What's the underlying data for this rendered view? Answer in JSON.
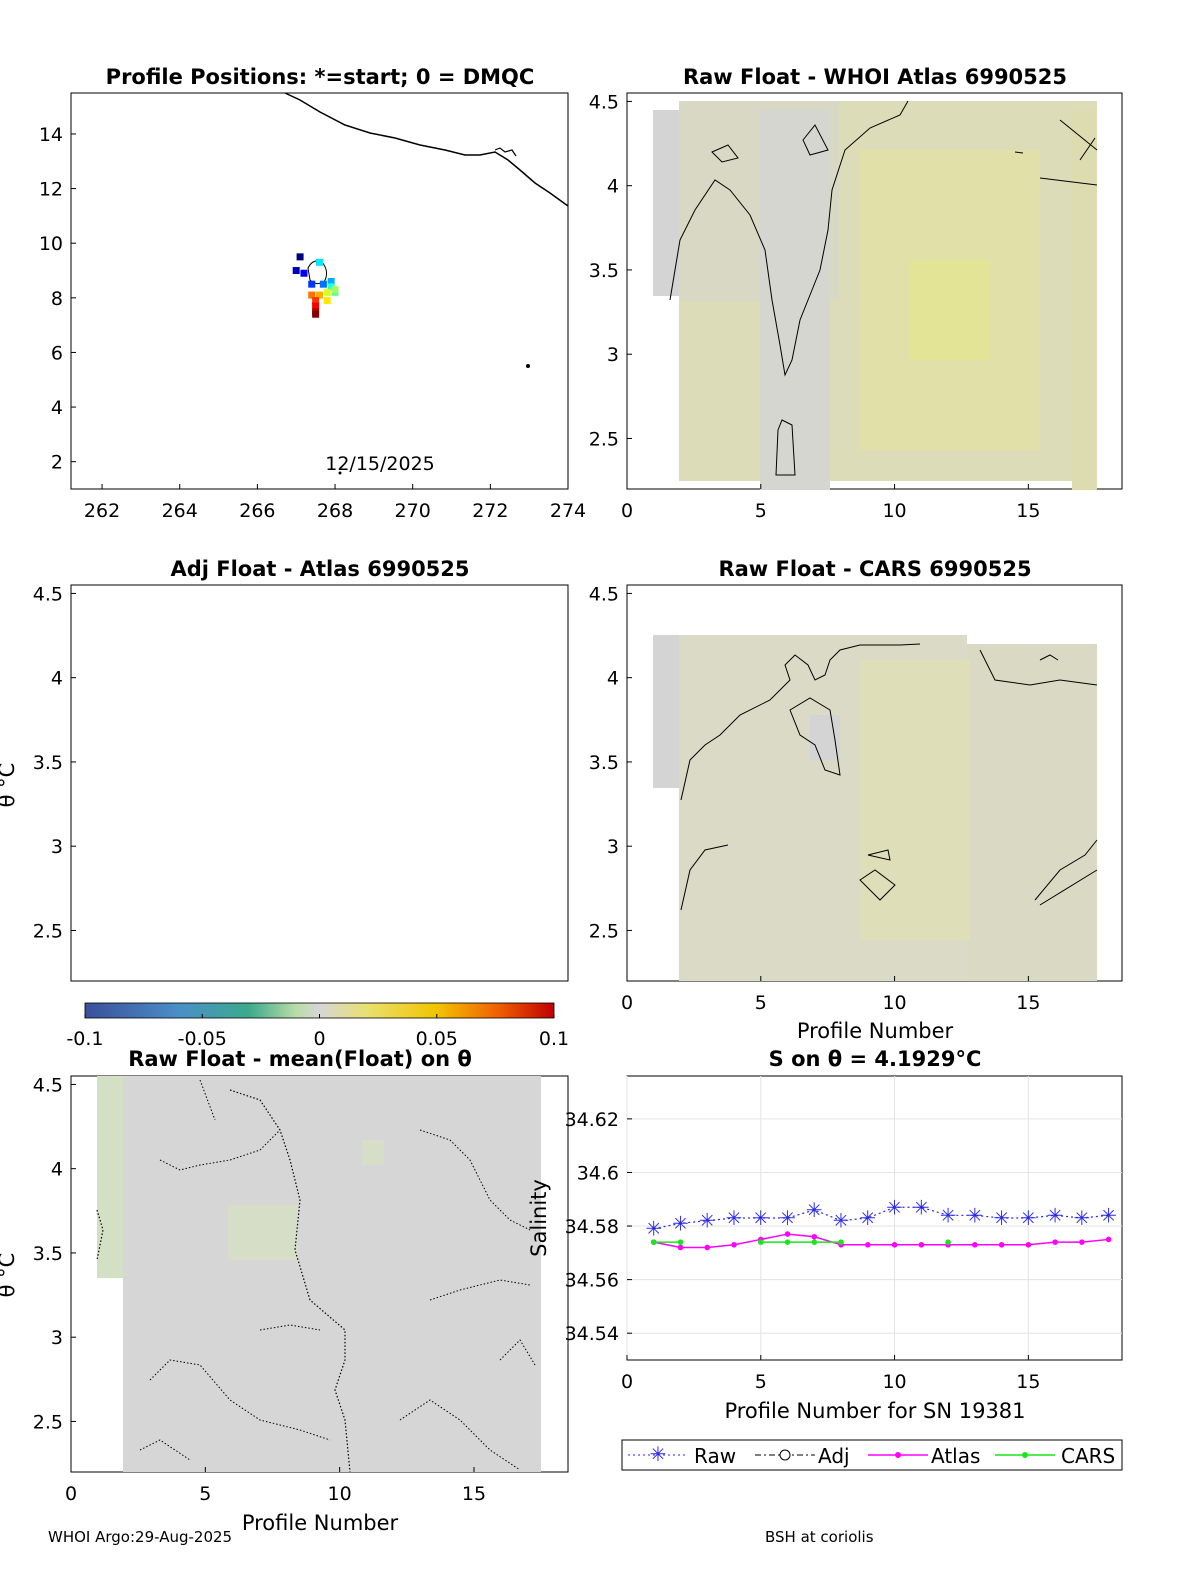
{
  "footer": {
    "left": "WHOI Argo:29-Aug-2025",
    "right": "BSH at coriolis"
  },
  "colors": {
    "raw": "#2a2ae6",
    "atlas": "#ff00ff",
    "cars": "#19e619",
    "anomaly_neutral": "#d6d6d6",
    "anomaly_warm": "#e0e08c",
    "contour": "#000000"
  },
  "chart_data": [
    {
      "id": "positions",
      "type": "scatter",
      "title": "Profile Positions: *=start; 0 = DMQC",
      "xlim": [
        261.2,
        274
      ],
      "ylim": [
        1,
        15.5
      ],
      "xticks": [
        "262",
        "264",
        "266",
        "268",
        "270",
        "272",
        "274"
      ],
      "yticks": [
        "2",
        "4",
        "6",
        "8",
        "10",
        "12",
        "14"
      ],
      "annotation": "12/15/2025",
      "points": [
        {
          "lon": 267.1,
          "lat": 9.5
        },
        {
          "lon": 267.0,
          "lat": 9.0
        },
        {
          "lon": 267.2,
          "lat": 8.9
        },
        {
          "lon": 267.4,
          "lat": 8.5
        },
        {
          "lon": 267.7,
          "lat": 8.5
        },
        {
          "lon": 267.9,
          "lat": 8.6
        },
        {
          "lon": 267.6,
          "lat": 9.3
        },
        {
          "lon": 267.9,
          "lat": 8.4
        },
        {
          "lon": 268.0,
          "lat": 8.2
        },
        {
          "lon": 268.0,
          "lat": 8.3
        },
        {
          "lon": 267.8,
          "lat": 8.2
        },
        {
          "lon": 267.8,
          "lat": 7.9
        },
        {
          "lon": 267.6,
          "lat": 8.1
        },
        {
          "lon": 267.4,
          "lat": 8.1
        },
        {
          "lon": 267.5,
          "lat": 7.9
        },
        {
          "lon": 267.5,
          "lat": 7.7
        },
        {
          "lon": 267.5,
          "lat": 7.5
        },
        {
          "lon": 267.5,
          "lat": 7.4
        }
      ]
    },
    {
      "id": "raw-atlas",
      "type": "heatmap",
      "title": "Raw Float - WHOI Atlas  6990525",
      "xlim": [
        0,
        18.5
      ],
      "ylim": [
        2.2,
        4.55
      ],
      "xticks": [
        "0",
        "5",
        "10",
        "15"
      ],
      "yticks": [
        "2.5",
        "3",
        "3.5",
        "4",
        "4.5"
      ],
      "xlabel": "",
      "ylabel": ""
    },
    {
      "id": "adj-atlas",
      "type": "heatmap",
      "title": "Adj Float - Atlas  6990525",
      "xlim": [
        0,
        18.5
      ],
      "ylim": [
        2.2,
        4.55
      ],
      "xticks": [],
      "yticks": [
        "2.5",
        "3",
        "3.5",
        "4",
        "4.5"
      ],
      "xlabel": "",
      "ylabel": "θ °C"
    },
    {
      "id": "raw-cars",
      "type": "heatmap",
      "title": "Raw Float - CARS  6990525",
      "xlim": [
        0,
        18.5
      ],
      "ylim": [
        2.2,
        4.55
      ],
      "xticks": [
        "0",
        "5",
        "10",
        "15"
      ],
      "yticks": [
        "2.5",
        "3",
        "3.5",
        "4",
        "4.5"
      ],
      "xlabel": "Profile Number",
      "ylabel": ""
    },
    {
      "id": "colorbar",
      "type": "colorbar",
      "range": [
        -0.1,
        0.1
      ],
      "ticks": [
        "-0.1",
        "-0.05",
        "0",
        "0.05",
        "0.1"
      ]
    },
    {
      "id": "raw-mean",
      "type": "heatmap",
      "title": "Raw Float - mean(Float) on θ",
      "xlim": [
        0,
        18.5
      ],
      "ylim": [
        2.2,
        4.55
      ],
      "xticks": [
        "0",
        "5",
        "10",
        "15"
      ],
      "yticks": [
        "2.5",
        "3",
        "3.5",
        "4",
        "4.5"
      ],
      "xlabel": "Profile Number",
      "ylabel": "θ °C"
    },
    {
      "id": "salinity",
      "type": "line",
      "title": "S on θ = 4.1929°C",
      "xlabel": "Profile Number for SN 19381",
      "ylabel": "Salinity",
      "xlim": [
        0,
        18.5
      ],
      "ylim": [
        34.53,
        34.636
      ],
      "xticks": [
        "0",
        "5",
        "10",
        "15"
      ],
      "yticks": [
        "34.54",
        "34.56",
        "34.58",
        "34.6",
        "34.62"
      ],
      "legend": [
        "Raw",
        "Adj",
        "Atlas",
        "CARS"
      ],
      "series": [
        {
          "name": "Raw",
          "x": [
            1,
            2,
            3,
            4,
            5,
            6,
            7,
            8,
            9,
            10,
            11,
            12,
            13,
            14,
            15,
            16,
            17,
            18
          ],
          "values": [
            34.579,
            34.581,
            34.582,
            34.583,
            34.583,
            34.583,
            34.586,
            34.582,
            34.583,
            34.587,
            34.587,
            34.584,
            34.584,
            34.583,
            34.583,
            34.584,
            34.583,
            34.584
          ]
        },
        {
          "name": "Atlas",
          "x": [
            1,
            2,
            3,
            4,
            5,
            6,
            7,
            8,
            9,
            10,
            11,
            12,
            13,
            14,
            15,
            16,
            17,
            18
          ],
          "values": [
            34.574,
            34.572,
            34.572,
            34.573,
            34.575,
            34.577,
            34.576,
            34.573,
            34.573,
            34.573,
            34.573,
            34.573,
            34.573,
            34.573,
            34.573,
            34.574,
            34.574,
            34.575
          ]
        },
        {
          "name": "CARS",
          "x": [
            1,
            2,
            5,
            6,
            7,
            8,
            12
          ],
          "values": [
            34.574,
            34.574,
            34.574,
            34.574,
            34.574,
            34.574,
            34.574
          ]
        }
      ]
    }
  ]
}
